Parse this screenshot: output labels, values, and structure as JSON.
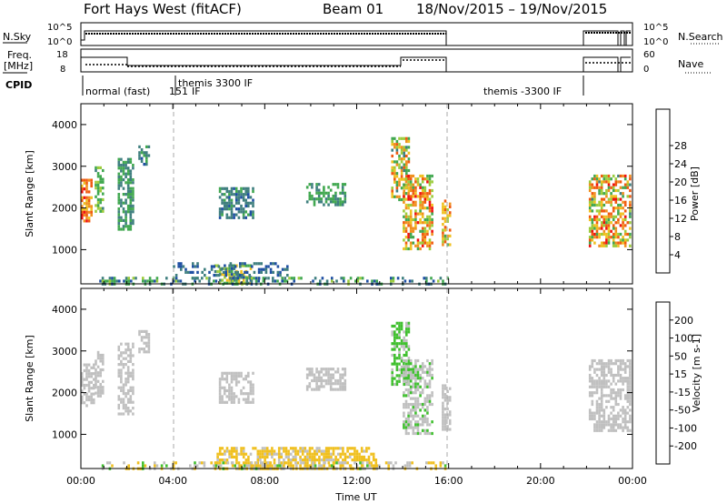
{
  "title": {
    "radar": "Fort Hays West (fitACF)",
    "beam": "Beam 01",
    "date_range": "18/Nov/2015 – 19/Nov/2015"
  },
  "strips": {
    "nsky_label": "N.Sky",
    "nsearch_label": "N.Search",
    "noise_ticks_left": [
      "10^5",
      "10^0"
    ],
    "noise_ticks_right": [
      "10^5",
      "10^0"
    ],
    "freq_label_1": "Freq.",
    "freq_label_2": "[MHz]",
    "freq_ticks": [
      "18",
      "8"
    ],
    "nave_label": "Nave",
    "nave_ticks": [
      "60",
      "0"
    ],
    "cpid_label": "CPID",
    "cpid_segments": [
      {
        "label": "normal (fast)",
        "start_h": 0,
        "end_h": 4
      },
      {
        "label": "151",
        "start_h": 4,
        "end_h": 4
      },
      {
        "label": "themis 3300 IF",
        "start_h": 4,
        "end_h": 16
      },
      {
        "label": "IF",
        "start_h": 4,
        "end_h": 16
      },
      {
        "label": "themis -3300 IF",
        "start_h": 16,
        "end_h": 24
      }
    ]
  },
  "colors": {
    "power": [
      "#1a1aff",
      "#1f4fa3",
      "#3f7f7f",
      "#41a850",
      "#9ccc3c",
      "#f0c020",
      "#f09020",
      "#f05a10",
      "#f01010"
    ],
    "velocity": [
      "#e81515",
      "#f05a10",
      "#f09020",
      "#f0c020",
      "#c0c0c0",
      "#41c030",
      "#3f9f7f",
      "#1f4fa3",
      "#1a1aff"
    ]
  },
  "chart_data": [
    {
      "type": "heatmap",
      "name": "power",
      "ylabel": "Slant Range [km]",
      "colorbar_label": "Power [dB]",
      "colorbar_ticks": [
        "4",
        "8",
        "12",
        "16",
        "20",
        "24",
        "28"
      ],
      "colorbar_range": [
        0,
        32
      ],
      "xlim": [
        0,
        24
      ],
      "ylim": [
        180,
        4500
      ],
      "yticks": [
        "1000",
        "2000",
        "3000",
        "4000"
      ],
      "dashed_lines_h": [
        4,
        16
      ],
      "patches": [
        {
          "t": [
            0.0,
            0.5
          ],
          "r": [
            1700,
            2700
          ],
          "level": [
            18,
            30
          ]
        },
        {
          "t": [
            0.6,
            1.0
          ],
          "r": [
            1900,
            3000
          ],
          "level": [
            10,
            16
          ]
        },
        {
          "t": [
            1.6,
            2.3
          ],
          "r": [
            1500,
            3200
          ],
          "level": [
            8,
            14
          ]
        },
        {
          "t": [
            2.5,
            3.0
          ],
          "r": [
            3000,
            3500
          ],
          "level": [
            6,
            12
          ]
        },
        {
          "t": [
            5.8,
            7.4
          ],
          "r": [
            180,
            650
          ],
          "level": [
            6,
            22
          ]
        },
        {
          "t": [
            6.0,
            7.5
          ],
          "r": [
            1800,
            2500
          ],
          "level": [
            6,
            12
          ]
        },
        {
          "t": [
            9.8,
            11.5
          ],
          "r": [
            2100,
            2600
          ],
          "level": [
            8,
            14
          ]
        },
        {
          "t": [
            13.5,
            14.3
          ],
          "r": [
            2200,
            3700
          ],
          "level": [
            10,
            28
          ]
        },
        {
          "t": [
            14.0,
            15.3
          ],
          "r": [
            1000,
            2800
          ],
          "level": [
            12,
            30
          ]
        },
        {
          "t": [
            15.7,
            16.1
          ],
          "r": [
            1100,
            2200
          ],
          "level": [
            12,
            28
          ]
        },
        {
          "t": [
            22.1,
            23.9
          ],
          "r": [
            1100,
            2800
          ],
          "level": [
            10,
            30
          ]
        }
      ],
      "streaks": [
        {
          "t": [
            0.8,
            16.0
          ],
          "r": [
            180,
            350
          ],
          "level": [
            4,
            16
          ]
        },
        {
          "t": [
            4.0,
            9.0
          ],
          "r": [
            350,
            700
          ],
          "level": [
            4,
            10
          ]
        }
      ]
    },
    {
      "type": "heatmap",
      "name": "velocity",
      "ylabel": "Slant Range [km]",
      "xlabel": "Time UT",
      "colorbar_label": "Velocity [m s-1]",
      "colorbar_ticks": [
        "-200",
        "-100",
        "-50",
        "-15",
        "15",
        "50",
        "100",
        "200"
      ],
      "colorbar_range": [
        -250,
        250
      ],
      "xlim": [
        0,
        24
      ],
      "ylim": [
        180,
        4500
      ],
      "xticks": [
        "00:00",
        "04:00",
        "08:00",
        "12:00",
        "16:00",
        "20:00",
        "00:00"
      ],
      "yticks": [
        "1000",
        "2000",
        "3000",
        "4000"
      ],
      "dashed_lines_h": [
        4,
        16
      ],
      "patches": [
        {
          "t": [
            0.0,
            0.6
          ],
          "r": [
            1700,
            2700
          ],
          "level": [
            -10,
            10
          ]
        },
        {
          "t": [
            0.6,
            1.0
          ],
          "r": [
            1900,
            3000
          ],
          "level": [
            -10,
            10
          ]
        },
        {
          "t": [
            1.6,
            2.3
          ],
          "r": [
            1500,
            3200
          ],
          "level": [
            -10,
            10
          ]
        },
        {
          "t": [
            2.5,
            3.0
          ],
          "r": [
            3000,
            3500
          ],
          "level": [
            -10,
            10
          ]
        },
        {
          "t": [
            5.8,
            12.8
          ],
          "r": [
            180,
            700
          ],
          "level": [
            -60,
            -20
          ]
        },
        {
          "t": [
            6.0,
            7.5
          ],
          "r": [
            1800,
            2500
          ],
          "level": [
            -10,
            10
          ]
        },
        {
          "t": [
            9.8,
            11.5
          ],
          "r": [
            2100,
            2600
          ],
          "level": [
            -10,
            10
          ]
        },
        {
          "t": [
            13.5,
            14.3
          ],
          "r": [
            2200,
            3700
          ],
          "level": [
            20,
            60
          ]
        },
        {
          "t": [
            14.0,
            15.3
          ],
          "r": [
            1000,
            2800
          ],
          "level": [
            -10,
            40
          ]
        },
        {
          "t": [
            15.7,
            16.1
          ],
          "r": [
            1100,
            2200
          ],
          "level": [
            -10,
            10
          ]
        },
        {
          "t": [
            22.1,
            23.9
          ],
          "r": [
            1100,
            2800
          ],
          "level": [
            -10,
            10
          ]
        }
      ],
      "streaks": [
        {
          "t": [
            0.8,
            16.0
          ],
          "r": [
            180,
            350
          ],
          "level": [
            -60,
            40
          ]
        }
      ]
    }
  ]
}
